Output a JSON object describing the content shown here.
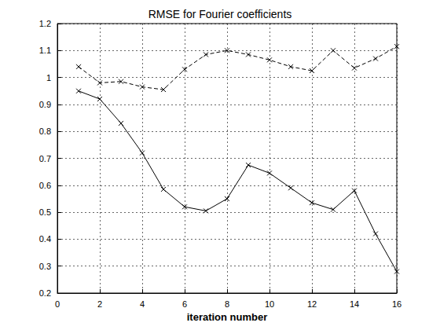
{
  "chart_data": {
    "type": "line",
    "title": "RMSE for Fourier coefficients",
    "x_label": "iteration number",
    "x": [
      1,
      2,
      3,
      4,
      5,
      6,
      7,
      8,
      9,
      10,
      11,
      12,
      13,
      14,
      15,
      16
    ],
    "series": [
      {
        "color": "#000000",
        "line_style": "dashed",
        "marker": "x",
        "values": [
          1.04,
          0.98,
          0.985,
          0.965,
          0.955,
          1.03,
          1.085,
          1.1,
          1.085,
          1.065,
          1.04,
          1.025,
          1.1,
          1.035,
          1.07,
          1.115
        ]
      },
      {
        "color": "#000000",
        "line_style": "solid",
        "marker": "x",
        "values": [
          0.95,
          0.92,
          0.83,
          0.72,
          0.585,
          0.52,
          0.505,
          0.55,
          0.675,
          0.645,
          0.59,
          0.535,
          0.51,
          0.58,
          0.42,
          0.28
        ]
      }
    ],
    "xlim": [
      0,
      16
    ],
    "xticks": [
      0,
      2,
      4,
      6,
      8,
      10,
      12,
      14,
      16
    ],
    "ylim": [
      0.2,
      1.2
    ],
    "yticks": [
      0.2,
      0.3,
      0.4,
      0.5,
      0.6,
      0.7,
      0.8,
      0.9,
      1,
      1.1,
      1.2
    ],
    "grid": true
  }
}
